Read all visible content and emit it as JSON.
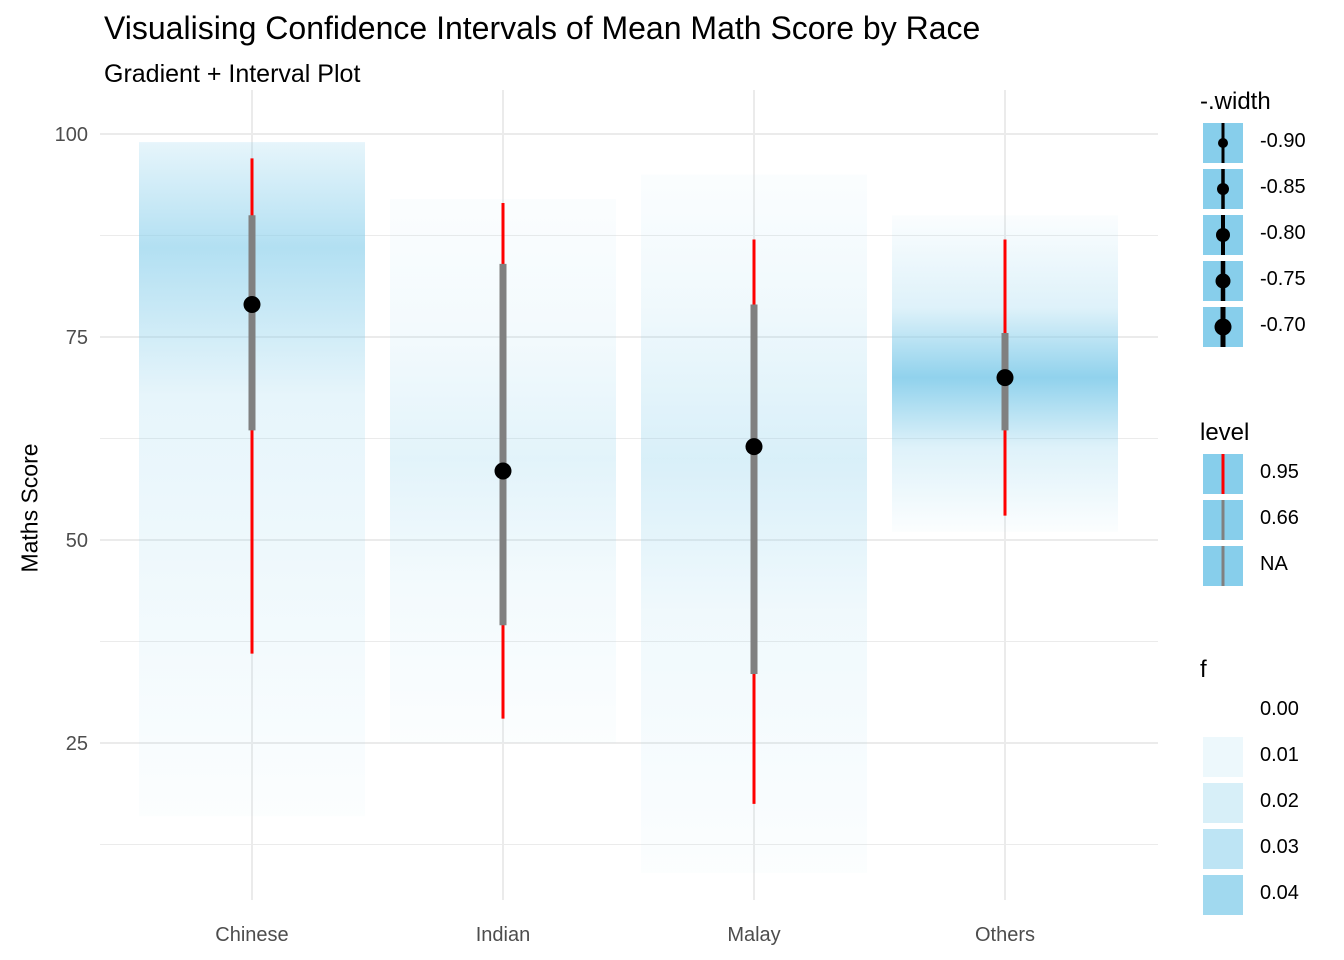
{
  "chart_data": {
    "type": "interval",
    "title": "Visualising Confidence Intervals of Mean Math Score by Race",
    "subtitle": "Gradient + Interval Plot",
    "xlabel": "",
    "ylabel": "Maths Score",
    "categories": [
      "Chinese",
      "Indian",
      "Malay",
      "Others"
    ],
    "ylim": [
      5,
      103
    ],
    "yticks": [
      25,
      50,
      75,
      100
    ],
    "grid": true,
    "mean": [
      79,
      58.5,
      61.5,
      70
    ],
    "interval_66": [
      [
        63.5,
        90
      ],
      [
        39.5,
        84
      ],
      [
        33.5,
        79
      ],
      [
        63.5,
        75.5
      ]
    ],
    "interval_95": [
      [
        36,
        97
      ],
      [
        28,
        91.5
      ],
      [
        17.5,
        87
      ],
      [
        53,
        87
      ]
    ],
    "gradient_range": [
      [
        16,
        99
      ],
      [
        25,
        92
      ],
      [
        9,
        95
      ],
      [
        51,
        90
      ]
    ],
    "gradient_peak": [
      [
        86,
        0.032
      ],
      [
        60,
        0.012
      ],
      [
        60,
        0.016
      ],
      [
        70,
        0.046
      ]
    ],
    "colors": {
      "gradient": "#87ceeb",
      "interval_95": "#ff0000",
      "interval_66": "#808080",
      "point": "#000000",
      "grid": "#ebebeb"
    },
    "legends": {
      "width": {
        "title": "-.width",
        "items": [
          "-0.90",
          "-0.85",
          "-0.80",
          "-0.75",
          "-0.70"
        ]
      },
      "level": {
        "title": "level",
        "items": [
          "0.95",
          "0.66",
          "NA"
        ]
      },
      "f": {
        "title": "f",
        "items": [
          "0.00",
          "0.01",
          "0.02",
          "0.03",
          "0.04"
        ]
      }
    }
  }
}
